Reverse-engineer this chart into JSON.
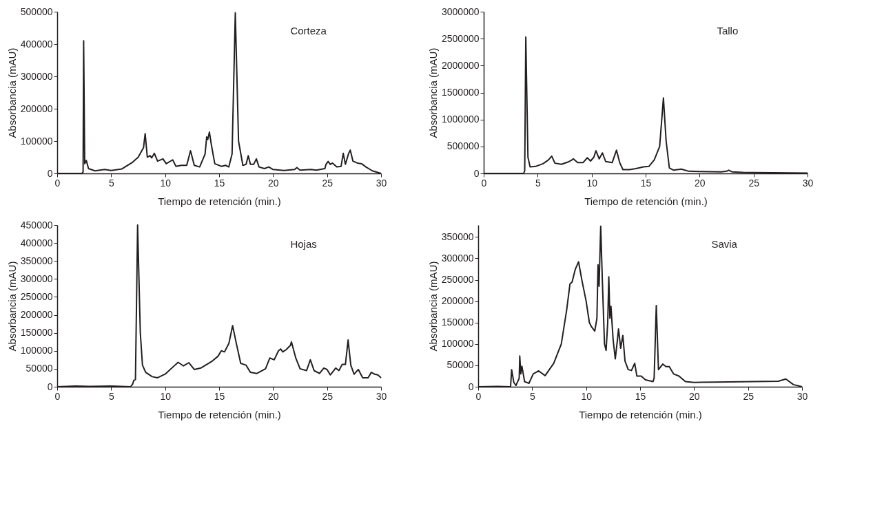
{
  "chart_data": [
    {
      "type": "line",
      "annotations": [
        "Corteza"
      ],
      "xlabel": "Tiempo de retención (min.)",
      "ylabel": "Absorbancia (mAU)",
      "xlim": [
        0,
        30
      ],
      "ylim": [
        0,
        500000
      ],
      "xticks": [
        0,
        5,
        10,
        15,
        20,
        25,
        30
      ],
      "yticks": [
        0,
        100000,
        200000,
        300000,
        400000,
        500000
      ],
      "x": [
        0,
        2.3,
        2.4,
        2.45,
        2.55,
        2.7,
        2.9,
        3.5,
        4.4,
        5,
        6,
        7,
        7.5,
        8.0,
        8.15,
        8.35,
        8.6,
        8.75,
        9.0,
        9.3,
        9.8,
        10.1,
        10.7,
        11.0,
        11.5,
        12.0,
        12.35,
        12.7,
        13.2,
        13.7,
        13.85,
        13.95,
        14.1,
        14.3,
        14.6,
        15.2,
        15.6,
        15.9,
        16.2,
        16.5,
        16.8,
        17.2,
        17.5,
        17.7,
        17.9,
        18.2,
        18.45,
        18.7,
        19.2,
        19.6,
        20,
        21,
        22,
        22.2,
        22.5,
        23.5,
        24,
        24.8,
        24.9,
        25.1,
        25.3,
        25.5,
        25.9,
        26.3,
        26.5,
        26.7,
        27.0,
        27.15,
        27.4,
        27.8,
        28.2,
        28.6,
        29.2,
        30
      ],
      "series": [
        {
          "color": "#231f20",
          "values": [
            0,
            0,
            5000,
            410000,
            30000,
            40000,
            15000,
            8000,
            12000,
            9000,
            14000,
            35000,
            50000,
            80000,
            123000,
            50000,
            55000,
            48000,
            62000,
            38000,
            45000,
            30000,
            42000,
            22000,
            25000,
            25000,
            70000,
            25000,
            20000,
            60000,
            113000,
            105000,
            128000,
            85000,
            30000,
            22000,
            25000,
            20000,
            60000,
            497000,
            100000,
            25000,
            28000,
            55000,
            28000,
            28000,
            45000,
            20000,
            15000,
            20000,
            12000,
            9000,
            12000,
            18000,
            10000,
            12000,
            10000,
            15000,
            28000,
            37000,
            28000,
            32000,
            20000,
            22000,
            62000,
            28000,
            62000,
            72000,
            38000,
            32000,
            30000,
            20000,
            8000,
            0
          ]
        }
      ]
    },
    {
      "type": "line",
      "annotations": [
        "Tallo"
      ],
      "xlabel": "Tiempo de retención (min.)",
      "ylabel": "Absorbancia (mAU)",
      "xlim": [
        0,
        30
      ],
      "ylim": [
        0,
        3000000
      ],
      "xticks": [
        0,
        5,
        10,
        15,
        20,
        25,
        30
      ],
      "yticks": [
        0,
        500000,
        1000000,
        1500000,
        2000000,
        2500000,
        3000000
      ],
      "x": [
        0,
        3.7,
        3.8,
        3.9,
        4.1,
        4.3,
        4.8,
        5.5,
        6.0,
        6.3,
        6.6,
        7.2,
        7.8,
        8.1,
        8.3,
        8.7,
        9.2,
        9.6,
        9.9,
        10.2,
        10.4,
        10.7,
        11.0,
        11.3,
        11.9,
        12.3,
        12.6,
        12.9,
        13.5,
        14.1,
        14.8,
        15.3,
        15.8,
        16.3,
        16.65,
        16.9,
        17.2,
        17.6,
        18.3,
        19,
        20,
        22,
        22.5,
        22.7,
        23,
        24,
        25,
        30
      ],
      "series": [
        {
          "color": "#231f20",
          "values": [
            0,
            0,
            50000,
            2530000,
            300000,
            120000,
            130000,
            180000,
            250000,
            320000,
            190000,
            170000,
            210000,
            240000,
            270000,
            200000,
            200000,
            290000,
            230000,
            300000,
            420000,
            270000,
            380000,
            220000,
            200000,
            430000,
            200000,
            70000,
            70000,
            90000,
            120000,
            130000,
            250000,
            500000,
            1400000,
            600000,
            100000,
            60000,
            80000,
            40000,
            35000,
            30000,
            40000,
            60000,
            30000,
            20000,
            15000,
            5000
          ]
        }
      ]
    },
    {
      "type": "line",
      "annotations": [
        "Hojas"
      ],
      "xlabel": "Tiempo de retención (min.)",
      "ylabel": "Absorbancia (mAU)",
      "xlim": [
        0,
        30
      ],
      "ylim": [
        0,
        450000
      ],
      "xticks": [
        0,
        5,
        10,
        15,
        20,
        25,
        30
      ],
      "yticks": [
        0,
        50000,
        100000,
        150000,
        200000,
        250000,
        300000,
        350000,
        400000,
        450000
      ],
      "x": [
        0,
        1.7,
        3,
        5,
        6.8,
        7.0,
        7.1,
        7.25,
        7.45,
        7.7,
        7.9,
        8.2,
        8.8,
        9.3,
        10,
        11.2,
        11.7,
        12.2,
        12.7,
        13.3,
        14.3,
        14.9,
        15.2,
        15.5,
        15.9,
        16.25,
        16.6,
        17.0,
        17.5,
        17.9,
        18.5,
        19.3,
        19.7,
        20.1,
        20.5,
        20.7,
        20.9,
        21.2,
        21.6,
        21.7,
        22.1,
        22.5,
        23.1,
        23.45,
        23.8,
        24.3,
        24.7,
        25.0,
        25.3,
        25.8,
        26.1,
        26.4,
        26.7,
        26.95,
        27.2,
        27.5,
        27.9,
        28.3,
        28.8,
        29.1,
        29.4,
        29.7,
        30
      ],
      "series": [
        {
          "color": "#231f20",
          "values": [
            0,
            2000,
            1000,
            2000,
            0,
            8000,
            18000,
            20000,
            450000,
            150000,
            60000,
            40000,
            28000,
            25000,
            35000,
            68000,
            58000,
            67000,
            48000,
            52000,
            70000,
            85000,
            100000,
            97000,
            120000,
            170000,
            120000,
            65000,
            60000,
            40000,
            37000,
            50000,
            80000,
            75000,
            100000,
            105000,
            97000,
            103000,
            115000,
            125000,
            80000,
            50000,
            45000,
            75000,
            45000,
            37000,
            52000,
            48000,
            33000,
            52000,
            45000,
            62000,
            62000,
            130000,
            60000,
            35000,
            48000,
            25000,
            25000,
            40000,
            35000,
            33000,
            25000
          ]
        }
      ]
    },
    {
      "type": "line",
      "annotations": [
        "Savia"
      ],
      "xlabel": "Tiempo de retención (min.)",
      "ylabel": "Absorbancia (mAU)",
      "xlim": [
        0,
        30
      ],
      "ylim": [
        0,
        378000
      ],
      "xticks": [
        0,
        5,
        10,
        15,
        20,
        25,
        30
      ],
      "yticks": [
        0,
        50000,
        100000,
        150000,
        200000,
        250000,
        300000,
        350000
      ],
      "x": [
        0,
        1.8,
        3.0,
        3.1,
        3.3,
        3.5,
        3.8,
        3.85,
        3.95,
        4.05,
        4.3,
        4.7,
        5.1,
        5.6,
        6.2,
        7,
        7.7,
        8.2,
        8.5,
        8.7,
        9.0,
        9.3,
        9.6,
        10.0,
        10.3,
        10.5,
        10.8,
        11.0,
        11.1,
        11.2,
        11.35,
        11.5,
        11.7,
        11.85,
        12.0,
        12.1,
        12.2,
        12.3,
        12.5,
        12.7,
        12.9,
        13.0,
        13.2,
        13.4,
        13.6,
        13.9,
        14.2,
        14.5,
        14.7,
        15.1,
        15.5,
        16.2,
        16.3,
        16.5,
        16.7,
        17.1,
        17.4,
        17.7,
        18.1,
        18.6,
        19.2,
        20,
        22,
        27.8,
        28.5,
        29.2,
        30
      ],
      "series": [
        {
          "color": "#231f20",
          "values": [
            0,
            1000,
            0,
            40000,
            10000,
            3000,
            20000,
            72000,
            30000,
            48000,
            12000,
            8000,
            30000,
            37000,
            26000,
            55000,
            100000,
            180000,
            240000,
            245000,
            275000,
            292000,
            250000,
            200000,
            150000,
            140000,
            130000,
            160000,
            285000,
            235000,
            375000,
            250000,
            100000,
            85000,
            150000,
            257000,
            160000,
            188000,
            110000,
            65000,
            110000,
            135000,
            90000,
            120000,
            60000,
            40000,
            38000,
            55000,
            25000,
            25000,
            16000,
            12000,
            20000,
            190000,
            40000,
            53000,
            47000,
            47000,
            30000,
            25000,
            12000,
            10000,
            11000,
            13000,
            18000,
            5000,
            0
          ]
        }
      ]
    }
  ]
}
